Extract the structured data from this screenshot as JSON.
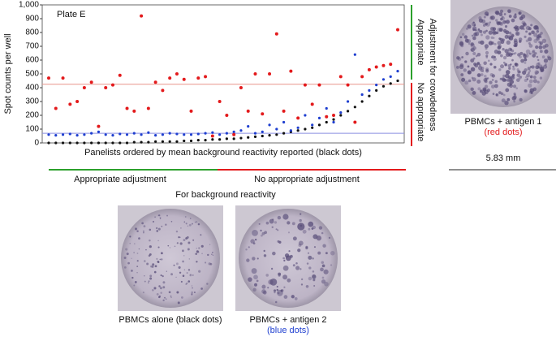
{
  "chart_data": {
    "type": "scatter",
    "label": "Plate E",
    "y_label": "Spot counts per well",
    "x_label": "Panelists ordered by mean background reactivity reported (black dots)",
    "ylim": [
      0,
      1000
    ],
    "yticks": [
      0,
      100,
      200,
      300,
      400,
      500,
      600,
      700,
      800,
      900,
      {
        "value": 1000,
        "label": "1,000"
      }
    ],
    "hlines": [
      {
        "value": 425,
        "color": "#e8948c"
      },
      {
        "value": 70,
        "color": "#8a8fe0"
      }
    ],
    "series": [
      {
        "name": "black dots",
        "color": "#111111",
        "values": [
          0,
          0,
          0,
          0,
          0,
          0,
          0,
          0,
          0,
          0,
          0,
          0,
          5,
          5,
          5,
          10,
          10,
          10,
          10,
          15,
          15,
          20,
          20,
          25,
          25,
          30,
          30,
          35,
          40,
          45,
          50,
          55,
          60,
          70,
          80,
          90,
          100,
          110,
          130,
          150,
          170,
          200,
          230,
          260,
          300,
          340,
          380,
          410,
          430,
          450
        ]
      },
      {
        "name": "blue dots",
        "color": "#1f3fd0",
        "values": [
          60,
          55,
          60,
          65,
          55,
          60,
          70,
          80,
          60,
          55,
          65,
          60,
          70,
          60,
          75,
          55,
          60,
          70,
          65,
          60,
          60,
          65,
          70,
          75,
          60,
          70,
          80,
          90,
          120,
          70,
          80,
          130,
          100,
          150,
          90,
          110,
          200,
          130,
          180,
          250,
          150,
          220,
          300,
          640,
          350,
          380,
          420,
          460,
          480,
          520
        ]
      },
      {
        "name": "red dots",
        "color": "#e31a1c",
        "values": [
          470,
          250,
          470,
          280,
          300,
          400,
          440,
          120,
          400,
          420,
          490,
          250,
          230,
          920,
          250,
          440,
          380,
          470,
          500,
          460,
          230,
          470,
          480,
          50,
          300,
          200,
          60,
          400,
          230,
          500,
          210,
          500,
          790,
          230,
          520,
          180,
          420,
          280,
          420,
          190,
          200,
          480,
          420,
          150,
          480,
          530,
          550,
          560,
          570,
          820
        ]
      }
    ],
    "right_label": "Adjustment for crowdedness",
    "right_top": "Appropriate",
    "right_bottom": "No appropriate",
    "bottom_left": "Appropriate adjustment",
    "bottom_right": "No appropriate adjustment",
    "bottom_caption": "For background reactivity"
  },
  "images": {
    "antigen1": {
      "caption": "PBMCs + antigen 1",
      "note": "(red dots)",
      "scale": "5.83 mm"
    },
    "alone": {
      "caption": "PBMCs alone (black dots)"
    },
    "antigen2": {
      "caption": "PBMCs + antigen 2",
      "note": "(blue dots)"
    }
  }
}
